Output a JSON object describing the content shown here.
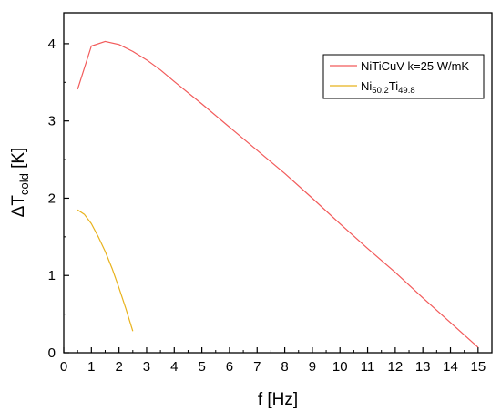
{
  "chart_data": {
    "type": "line",
    "xlabel": "f [Hz]",
    "ylabel": {
      "main": "ΔT",
      "sub": "cold",
      "unit": " [K]"
    },
    "xlim": [
      0,
      15.5
    ],
    "ylim": [
      0,
      4.4
    ],
    "xticks": [
      "0",
      "1",
      "2",
      "3",
      "4",
      "5",
      "6",
      "7",
      "8",
      "9",
      "10",
      "11",
      "12",
      "13",
      "14",
      "15"
    ],
    "yticks": [
      "0",
      "1",
      "2",
      "3",
      "4"
    ],
    "grid": false,
    "legend_position": "top-right",
    "series": [
      {
        "legend": {
          "main": "NiTiCuV k=25 W/mK"
        },
        "color": "#f25a5a",
        "x": [
          0.5,
          1.0,
          1.5,
          2.0,
          2.5,
          3.0,
          3.5,
          4,
          5,
          6,
          7,
          8,
          9,
          10,
          11,
          12,
          13,
          14,
          15
        ],
        "y": [
          3.41,
          3.97,
          4.03,
          3.99,
          3.9,
          3.79,
          3.66,
          3.51,
          3.22,
          2.92,
          2.62,
          2.32,
          2.0,
          1.67,
          1.35,
          1.04,
          0.71,
          0.39,
          0.07
        ]
      },
      {
        "legend": {
          "main": "Ni",
          "sub1": "50.2",
          "mid": "Ti",
          "sub2": "49.8"
        },
        "color": "#e8b21c",
        "x": [
          0.5,
          0.75,
          1.0,
          1.25,
          1.5,
          1.75,
          2.0,
          2.25,
          2.5
        ],
        "y": [
          1.85,
          1.79,
          1.67,
          1.5,
          1.31,
          1.09,
          0.84,
          0.57,
          0.28
        ]
      }
    ]
  }
}
